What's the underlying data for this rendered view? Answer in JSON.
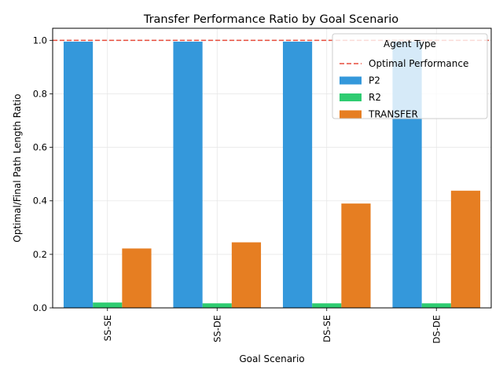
{
  "chart_data": {
    "type": "bar",
    "title": "Transfer Performance Ratio by Goal Scenario",
    "xlabel": "Goal Scenario",
    "ylabel": "Optimal/Final Path Length Ratio",
    "categories": [
      "SS-SE",
      "SS-DE",
      "DS-SE",
      "DS-DE"
    ],
    "series": [
      {
        "name": "P2",
        "color": "#3498db",
        "values": [
          0.995,
          0.995,
          0.995,
          0.995
        ]
      },
      {
        "name": "R2",
        "color": "#2ecc71",
        "values": [
          0.02,
          0.017,
          0.017,
          0.017
        ]
      },
      {
        "name": "TRANSFER",
        "color": "#e67e22",
        "values": [
          0.222,
          0.245,
          0.39,
          0.438
        ]
      }
    ],
    "reference_line": {
      "name": "Optimal Performance",
      "value": 1.0,
      "color": "#e74c3c",
      "style": "dashed"
    },
    "ylim": [
      0,
      1.045
    ],
    "yticks": [
      "0.0",
      "0.2",
      "0.4",
      "0.6",
      "0.8",
      "1.0"
    ],
    "grid": true,
    "legend": {
      "title": "Agent Type",
      "placement": "top-right"
    }
  }
}
